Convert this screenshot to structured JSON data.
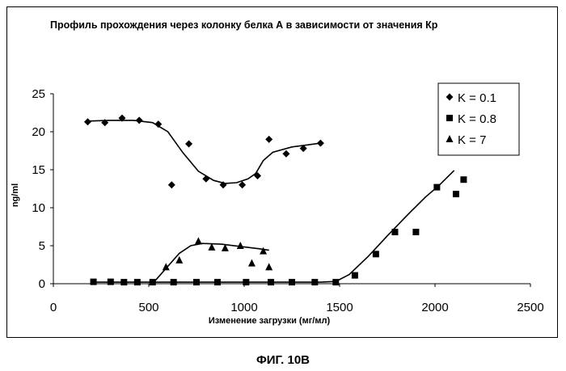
{
  "chart_data": {
    "type": "scatter",
    "title": "Профиль прохождения через колонку белка А в зависимости от значения Кр",
    "xlabel": "Изменение загрузки (мг/мл)",
    "ylabel": "ng/ml",
    "xlim": [
      0,
      2500
    ],
    "ylim": [
      0,
      25
    ],
    "xticks": [
      "0",
      "500",
      "1000",
      "1500",
      "2000",
      "2500"
    ],
    "yticks": [
      "0",
      "5",
      "10",
      "15",
      "20",
      "25"
    ],
    "legend_position": "top-right",
    "series": [
      {
        "name": "K = 0.1",
        "marker": "diamond",
        "points": [
          [
            180,
            21.3
          ],
          [
            270,
            21.2
          ],
          [
            360,
            21.8
          ],
          [
            450,
            21.5
          ],
          [
            550,
            21.0
          ],
          [
            620,
            13.0
          ],
          [
            710,
            18.4
          ],
          [
            800,
            13.8
          ],
          [
            890,
            13.0
          ],
          [
            990,
            13.0
          ],
          [
            1070,
            14.2
          ],
          [
            1130,
            19.0
          ],
          [
            1220,
            17.1
          ],
          [
            1310,
            17.8
          ],
          [
            1400,
            18.5
          ]
        ],
        "trend": [
          [
            180,
            21.4
          ],
          [
            300,
            21.5
          ],
          [
            420,
            21.5
          ],
          [
            520,
            21.2
          ],
          [
            600,
            20.0
          ],
          [
            680,
            17.2
          ],
          [
            760,
            14.8
          ],
          [
            840,
            13.6
          ],
          [
            900,
            13.2
          ],
          [
            960,
            13.3
          ],
          [
            1020,
            13.8
          ],
          [
            1060,
            14.5
          ],
          [
            1100,
            16.2
          ],
          [
            1150,
            17.3
          ],
          [
            1250,
            18.0
          ],
          [
            1400,
            18.5
          ]
        ]
      },
      {
        "name": "K = 0.8",
        "marker": "square",
        "points": [
          [
            210,
            0.25
          ],
          [
            300,
            0.25
          ],
          [
            370,
            0.2
          ],
          [
            440,
            0.2
          ],
          [
            520,
            0.2
          ],
          [
            630,
            0.2
          ],
          [
            750,
            0.2
          ],
          [
            860,
            0.2
          ],
          [
            1010,
            0.2
          ],
          [
            1140,
            0.2
          ],
          [
            1250,
            0.2
          ],
          [
            1370,
            0.2
          ],
          [
            1480,
            0.2
          ],
          [
            1580,
            1.1
          ],
          [
            1690,
            3.9
          ],
          [
            1790,
            6.8
          ],
          [
            1900,
            6.8
          ],
          [
            2010,
            12.7
          ],
          [
            2110,
            11.8
          ],
          [
            2150,
            13.7
          ]
        ],
        "trend": [
          [
            200,
            0.2
          ],
          [
            1400,
            0.2
          ],
          [
            1480,
            0.3
          ],
          [
            1550,
            1.2
          ],
          [
            1650,
            3.6
          ],
          [
            1750,
            6.3
          ],
          [
            1850,
            8.9
          ],
          [
            1950,
            11.4
          ],
          [
            2020,
            12.9
          ],
          [
            2100,
            14.9
          ]
        ]
      },
      {
        "name": "K = 7",
        "marker": "triangle",
        "points": [
          [
            590,
            2.2
          ],
          [
            660,
            3.1
          ],
          [
            760,
            5.6
          ],
          [
            830,
            4.8
          ],
          [
            900,
            4.7
          ],
          [
            980,
            5.0
          ],
          [
            1040,
            2.7
          ],
          [
            1100,
            4.3
          ],
          [
            1130,
            2.2
          ]
        ],
        "trend": [
          [
            530,
            0.3
          ],
          [
            590,
            2.0
          ],
          [
            660,
            4.0
          ],
          [
            720,
            5.0
          ],
          [
            780,
            5.3
          ],
          [
            880,
            5.2
          ],
          [
            980,
            4.9
          ],
          [
            1080,
            4.6
          ],
          [
            1130,
            4.4
          ]
        ]
      }
    ],
    "caption": "ФИГ. 10В"
  }
}
